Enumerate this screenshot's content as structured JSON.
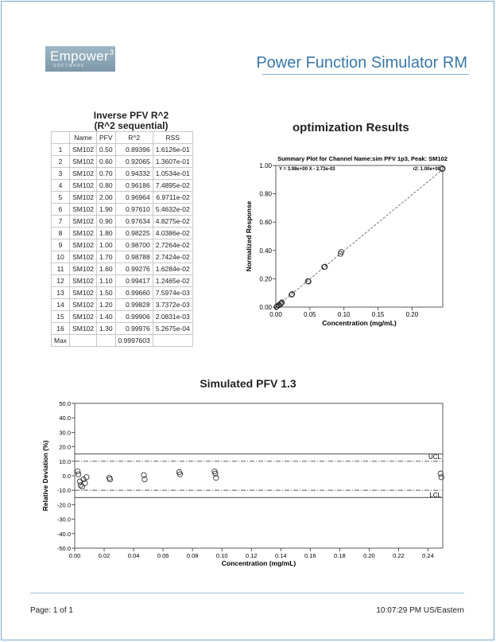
{
  "header": {
    "logo_text": "Empower",
    "logo_sup": "3",
    "logo_sub": "SOFTWARE",
    "report_title": "Power Function Simulator RM"
  },
  "pfv_table": {
    "title_line1": "Inverse PFV R^2",
    "title_line2": "(R^2 sequential)",
    "columns": [
      "",
      "Name",
      "PFV",
      "R^2",
      "RSS"
    ],
    "rows": [
      [
        "1",
        "SM102",
        "0.50",
        "0.89396",
        "1.6126e-01"
      ],
      [
        "2",
        "SM102",
        "0.60",
        "0.92065",
        "1.3607e-01"
      ],
      [
        "3",
        "SM102",
        "0.70",
        "0.94332",
        "1.0534e-01"
      ],
      [
        "4",
        "SM102",
        "0.80",
        "0.96186",
        "7.4895e-02"
      ],
      [
        "5",
        "SM102",
        "2.00",
        "0.96964",
        "6.9711e-02"
      ],
      [
        "6",
        "SM102",
        "1.90",
        "0.97610",
        "5.4632e-02"
      ],
      [
        "7",
        "SM102",
        "0.90",
        "0.97634",
        "4.8275e-02"
      ],
      [
        "8",
        "SM102",
        "1.80",
        "0.98225",
        "4.0386e-02"
      ],
      [
        "9",
        "SM102",
        "1.00",
        "0.98700",
        "2.7264e-02"
      ],
      [
        "10",
        "SM102",
        "1.70",
        "0.98788",
        "2.7424e-02"
      ],
      [
        "11",
        "SM102",
        "1.60",
        "0.99276",
        "1.6284e-02"
      ],
      [
        "12",
        "SM102",
        "1.10",
        "0.99417",
        "1.2465e-02"
      ],
      [
        "13",
        "SM102",
        "1.50",
        "0.99660",
        "7.5974e-03"
      ],
      [
        "14",
        "SM102",
        "1.20",
        "0.99828",
        "3.7372e-03"
      ],
      [
        "15",
        "SM102",
        "1.40",
        "0.99906",
        "2.0831e-03"
      ],
      [
        "16",
        "SM102",
        "1.30",
        "0.99976",
        "5.2675e-04"
      ],
      [
        "Max",
        "",
        "",
        "0.9997603",
        ""
      ]
    ]
  },
  "optimization_title": "optimization Results",
  "simulated_title": "Simulated PFV 1.3",
  "chart_data": [
    {
      "type": "scatter",
      "title": "Summary Plot for Channel Name:sim PFV 1p3, Peak: SM102",
      "xlabel": "Concentration (mg/mL)",
      "ylabel": "Normalized Response",
      "xlim": [
        0,
        0.245
      ],
      "ylim": [
        0,
        1.0
      ],
      "xticks": [
        "0.00",
        "0.05",
        "0.10",
        "0.15",
        "0.20"
      ],
      "yticks": [
        "0.00",
        "0.20",
        "0.40",
        "0.60",
        "0.80",
        "1.00"
      ],
      "equation": "Y = 3.98e+00 X - 2.73e-03",
      "r2_text": "r2: 1.00e+00",
      "fit_line": {
        "slope": 3.98,
        "intercept": -0.00273
      },
      "points": [
        [
          0.001,
          0.001
        ],
        [
          0.0015,
          0.004
        ],
        [
          0.004,
          0.012
        ],
        [
          0.005,
          0.015
        ],
        [
          0.007,
          0.022
        ],
        [
          0.008,
          0.028
        ],
        [
          0.009,
          0.033
        ],
        [
          0.023,
          0.087
        ],
        [
          0.024,
          0.092
        ],
        [
          0.047,
          0.183
        ],
        [
          0.048,
          0.18
        ],
        [
          0.071,
          0.283
        ],
        [
          0.072,
          0.285
        ],
        [
          0.095,
          0.376
        ],
        [
          0.096,
          0.389
        ],
        [
          0.244,
          0.975
        ],
        [
          0.245,
          0.978
        ]
      ]
    },
    {
      "type": "scatter",
      "xlabel": "Concentration (mg/mL)",
      "ylabel": "Relative Deviation (%)",
      "xlim": [
        0,
        0.25
      ],
      "ylim": [
        -50,
        50
      ],
      "xticks": [
        "0.00",
        "0.02",
        "0.04",
        "0.06",
        "0.08",
        "0.10",
        "0.12",
        "0.14",
        "0.16",
        "0.18",
        "0.20",
        "0.22",
        "0.24"
      ],
      "yticks": [
        "50.0",
        "40.0",
        "30.0",
        "20.0",
        "10.0",
        "0.0",
        "-10.0",
        "-20.0",
        "-30.0",
        "-40.0",
        "-50.0"
      ],
      "ucl": 10,
      "lcl": -10,
      "ucl_label": "UCL",
      "lcl_label": "LCL",
      "outer_limits": [
        15,
        -15
      ],
      "points": [
        [
          0.002,
          3.0
        ],
        [
          0.0025,
          1.0
        ],
        [
          0.0035,
          -4.0
        ],
        [
          0.004,
          -6.5
        ],
        [
          0.005,
          -7.5
        ],
        [
          0.006,
          -2.5
        ],
        [
          0.007,
          -5.0
        ],
        [
          0.008,
          -1.0
        ],
        [
          0.0235,
          -1.5
        ],
        [
          0.024,
          -2.5
        ],
        [
          0.047,
          0.5
        ],
        [
          0.0475,
          -2.5
        ],
        [
          0.071,
          2.5
        ],
        [
          0.0715,
          1.0
        ],
        [
          0.095,
          3.0
        ],
        [
          0.0955,
          1.5
        ],
        [
          0.096,
          -1.5
        ],
        [
          0.2485,
          1.5
        ],
        [
          0.249,
          -1.0
        ]
      ]
    }
  ],
  "footer": {
    "page_label": "Page: 1 of 1",
    "time_label": "10:07:29 PM US/Eastern"
  }
}
